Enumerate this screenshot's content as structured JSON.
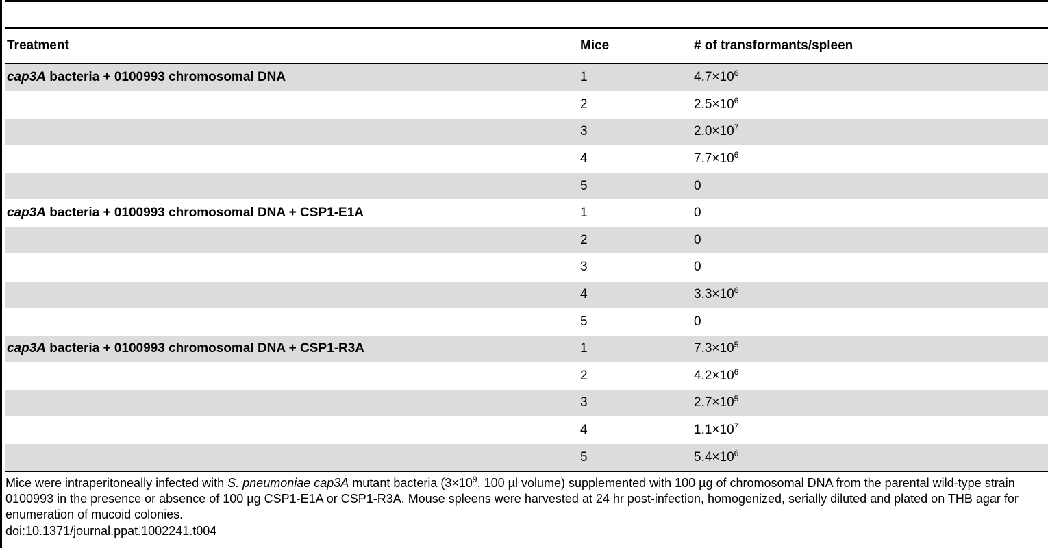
{
  "table": {
    "headers": [
      "Treatment",
      "Mice",
      "# of transformants/spleen"
    ],
    "rows": [
      {
        "treat_italic": "cap3A",
        "treat_rest": " bacteria + 0100993 chromosomal DNA",
        "mice": "1",
        "base": "4.7×10",
        "exp": "6"
      },
      {
        "treat_italic": "",
        "treat_rest": "",
        "mice": "2",
        "base": "2.5×10",
        "exp": "6"
      },
      {
        "treat_italic": "",
        "treat_rest": "",
        "mice": "3",
        "base": "2.0×10",
        "exp": "7"
      },
      {
        "treat_italic": "",
        "treat_rest": "",
        "mice": "4",
        "base": "7.7×10",
        "exp": "6"
      },
      {
        "treat_italic": "",
        "treat_rest": "",
        "mice": "5",
        "base": "0",
        "exp": ""
      },
      {
        "treat_italic": "cap3A",
        "treat_rest": " bacteria + 0100993 chromosomal DNA + CSP1-E1A",
        "mice": "1",
        "base": "0",
        "exp": ""
      },
      {
        "treat_italic": "",
        "treat_rest": "",
        "mice": "2",
        "base": "0",
        "exp": ""
      },
      {
        "treat_italic": "",
        "treat_rest": "",
        "mice": "3",
        "base": "0",
        "exp": ""
      },
      {
        "treat_italic": "",
        "treat_rest": "",
        "mice": "4",
        "base": "3.3×10",
        "exp": "6"
      },
      {
        "treat_italic": "",
        "treat_rest": "",
        "mice": "5",
        "base": "0",
        "exp": ""
      },
      {
        "treat_italic": "cap3A",
        "treat_rest": " bacteria + 0100993 chromosomal DNA + CSP1-R3A",
        "mice": "1",
        "base": "7.3×10",
        "exp": "5"
      },
      {
        "treat_italic": "",
        "treat_rest": "",
        "mice": "2",
        "base": "4.2×10",
        "exp": "6"
      },
      {
        "treat_italic": "",
        "treat_rest": "",
        "mice": "3",
        "base": "2.7×10",
        "exp": "5"
      },
      {
        "treat_italic": "",
        "treat_rest": "",
        "mice": "4",
        "base": "1.1×10",
        "exp": "7"
      },
      {
        "treat_italic": "",
        "treat_rest": "",
        "mice": "5",
        "base": "5.4×10",
        "exp": "6"
      }
    ]
  },
  "footnote": {
    "p1": "Mice were intraperitoneally infected with ",
    "i1": "S. pneumoniae cap3A",
    "p2": " mutant bacteria (3×10",
    "sup1": "9",
    "p3": ", 100 µl volume) supplemented with 100 µg of chromosomal DNA from the parental wild-type strain 0100993 in the presence or absence of 100 µg CSP1-E1A or CSP1-R3A. Mouse spleens were harvested at 24 hr post-infection, homogenized, serially diluted and plated on THB agar for enumeration of mucoid colonies."
  },
  "doi": "doi:10.1371/journal.ppat.1002241.t004"
}
